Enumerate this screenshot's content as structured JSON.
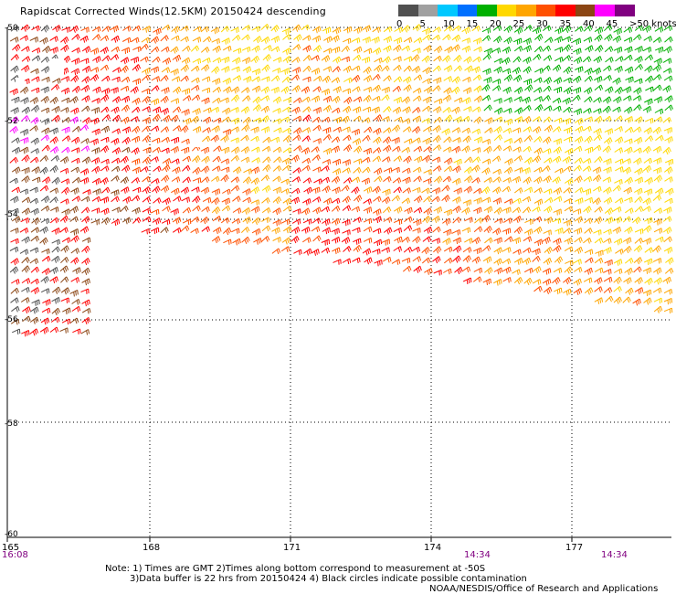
{
  "title": "Rapidscat Corrected Winds(12.5KM) 20150424 descending",
  "legend": {
    "labels": [
      "0",
      "5",
      "10",
      "15",
      "20",
      "25",
      "30",
      "35",
      "40",
      "45",
      ">50 knots"
    ],
    "colors": [
      "#505050",
      "#a0a0a0",
      "#00c8ff",
      "#0070ff",
      "#00b000",
      "#ffd800",
      "#ffa500",
      "#ff5000",
      "#ff0000",
      "#8b4513",
      "#ff00ff",
      "#800080"
    ]
  },
  "axes": {
    "x_ticks": [
      "165",
      "168",
      "171",
      "174",
      "177"
    ],
    "y_ticks": [
      "-50",
      "-52",
      "-54",
      "-56",
      "-58",
      "-60"
    ],
    "time_labels": [
      "16:08",
      "14:34",
      "14:34"
    ]
  },
  "notes": {
    "line1": "Note: 1) Times are GMT 2)Times along bottom correspond to measurement at -50S",
    "line2": "3)Data buffer is 22 hrs from 20150424 4) Black circles indicate possible contamination",
    "credit": "NOAA/NESDIS/Office of Research and Applications"
  }
}
